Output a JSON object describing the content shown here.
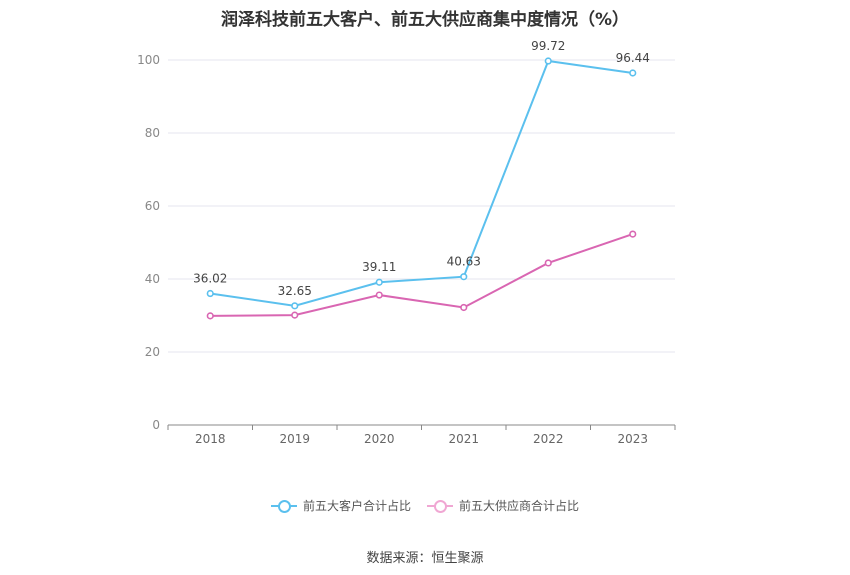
{
  "chart_data": {
    "type": "line",
    "title": "润泽科技前五大客户、前五大供应商集中度情况（%）",
    "categories": [
      "2018",
      "2019",
      "2020",
      "2021",
      "2022",
      "2023"
    ],
    "ylim": [
      0,
      100
    ],
    "yticks": [
      0,
      20,
      40,
      60,
      80,
      100
    ],
    "grid": true,
    "legend_position": "bottom",
    "series": [
      {
        "name": "前五大客户合计占比",
        "color": "#5bc0ee",
        "values": [
          36.02,
          32.65,
          39.11,
          40.63,
          99.72,
          96.44
        ],
        "labels": [
          "36.02",
          "32.65",
          "39.11",
          "40.63",
          "99.72",
          "96.44"
        ]
      },
      {
        "name": "前五大供应商合计占比",
        "color": "#d966b2",
        "values": [
          29.9,
          30.1,
          35.6,
          32.2,
          44.4,
          52.3
        ]
      }
    ]
  },
  "source": "数据来源：恒生聚源"
}
